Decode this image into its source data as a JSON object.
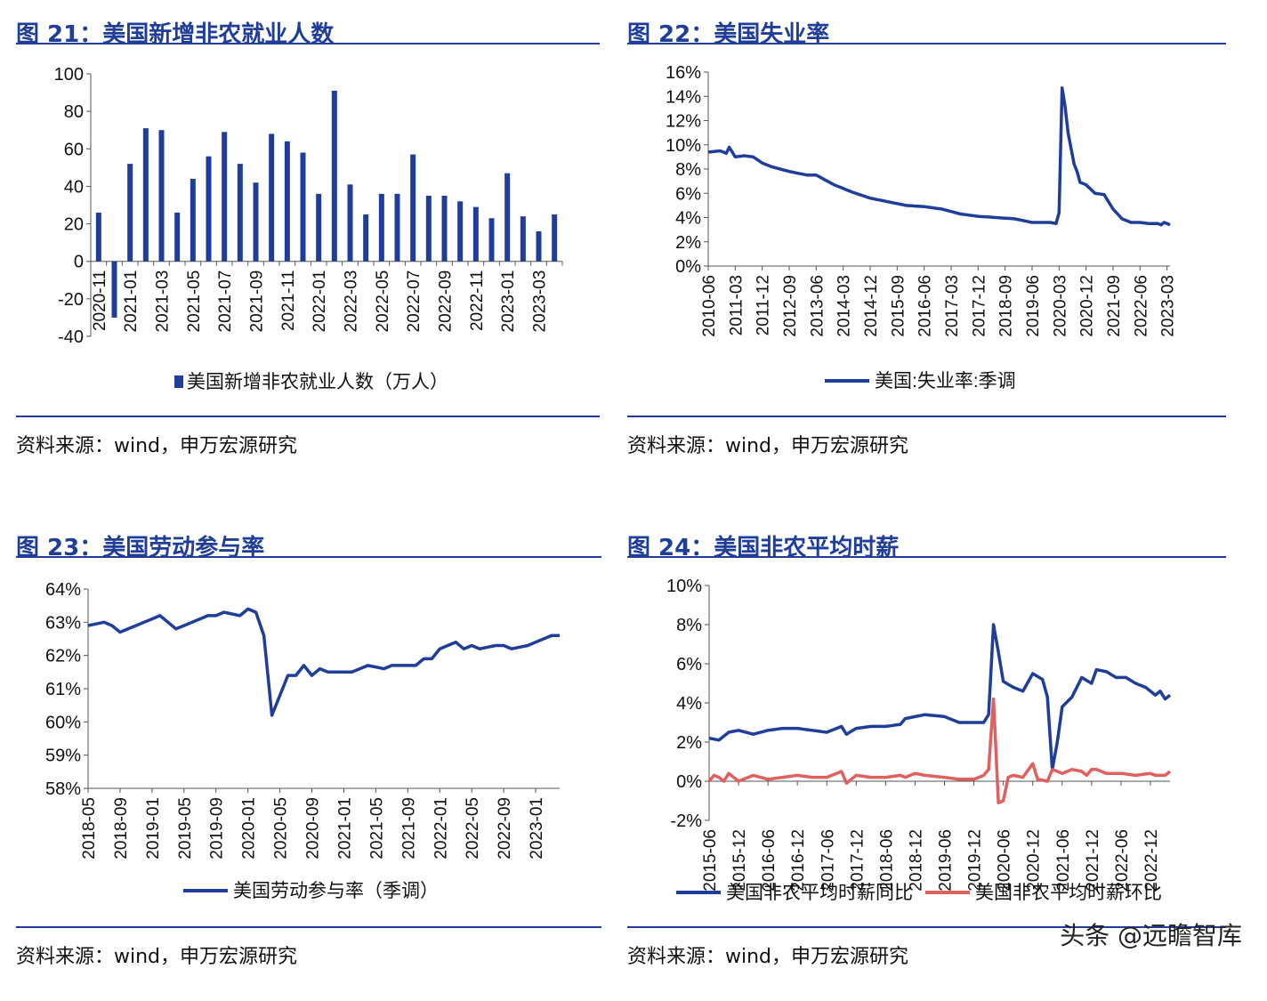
{
  "panels": [
    {
      "title": "图 21：美国新增非农就业人数",
      "source": "资料来源：wind，申万宏源研究",
      "chart": {
        "type": "bar",
        "categories": [
          "2020-11",
          "2020-12",
          "2021-01",
          "2021-02",
          "2021-03",
          "2021-04",
          "2021-05",
          "2021-06",
          "2021-07",
          "2021-08",
          "2021-09",
          "2021-10",
          "2021-11",
          "2021-12",
          "2022-01",
          "2022-02",
          "2022-03",
          "2022-04",
          "2022-05",
          "2022-06",
          "2022-07",
          "2022-08",
          "2022-09",
          "2022-10",
          "2022-11",
          "2022-12",
          "2023-01",
          "2023-02",
          "2023-03",
          "2023-04"
        ],
        "tick_labels": [
          "2020-11",
          "2021-01",
          "2021-03",
          "2021-05",
          "2021-07",
          "2021-09",
          "2021-11",
          "2022-01",
          "2022-03",
          "2022-05",
          "2022-07",
          "2022-09",
          "2022-11",
          "2023-01",
          "2023-03"
        ],
        "values": [
          26,
          -30,
          52,
          71,
          70,
          26,
          44,
          56,
          69,
          52,
          42,
          68,
          64,
          58,
          36,
          91,
          41,
          25,
          36,
          36,
          57,
          35,
          35,
          32,
          29,
          23,
          47,
          24,
          16,
          25
        ],
        "series_name": "美国新增非农就业人数（万人）",
        "y_ticks": [
          "100",
          "80",
          "60",
          "40",
          "20",
          "0",
          "-20",
          "-40"
        ],
        "ylim": [
          -40,
          100
        ],
        "color": "#1f3d99",
        "legend_position": "bottom"
      }
    },
    {
      "title": "图 22：美国失业率",
      "source": "资料来源：wind，申万宏源研究",
      "chart": {
        "type": "line",
        "x_start": "2010-06",
        "tick_labels": [
          "2010-06",
          "2011-03",
          "2011-12",
          "2012-09",
          "2013-06",
          "2014-03",
          "2014-12",
          "2015-09",
          "2016-06",
          "2017-03",
          "2017-12",
          "2018-09",
          "2019-06",
          "2020-03",
          "2020-12",
          "2021-09",
          "2022-06",
          "2023-03"
        ],
        "x_end": "2023-04",
        "keypoints": [
          [
            "2010-06",
            9.4
          ],
          [
            "2010-10",
            9.5
          ],
          [
            "2010-12",
            9.3
          ],
          [
            "2011-01",
            9.8
          ],
          [
            "2011-03",
            9.0
          ],
          [
            "2011-06",
            9.1
          ],
          [
            "2011-09",
            9.0
          ],
          [
            "2011-12",
            8.5
          ],
          [
            "2012-03",
            8.2
          ],
          [
            "2012-09",
            7.8
          ],
          [
            "2013-03",
            7.5
          ],
          [
            "2013-06",
            7.5
          ],
          [
            "2013-12",
            6.7
          ],
          [
            "2014-06",
            6.1
          ],
          [
            "2014-12",
            5.6
          ],
          [
            "2015-06",
            5.3
          ],
          [
            "2015-12",
            5.0
          ],
          [
            "2016-06",
            4.9
          ],
          [
            "2016-12",
            4.7
          ],
          [
            "2017-06",
            4.3
          ],
          [
            "2017-12",
            4.1
          ],
          [
            "2018-06",
            4.0
          ],
          [
            "2018-12",
            3.9
          ],
          [
            "2019-06",
            3.6
          ],
          [
            "2019-12",
            3.6
          ],
          [
            "2020-02",
            3.5
          ],
          [
            "2020-03",
            4.4
          ],
          [
            "2020-04",
            14.7
          ],
          [
            "2020-05",
            13.2
          ],
          [
            "2020-06",
            11.0
          ],
          [
            "2020-08",
            8.4
          ],
          [
            "2020-09",
            7.8
          ],
          [
            "2020-10",
            6.9
          ],
          [
            "2020-12",
            6.7
          ],
          [
            "2021-03",
            6.0
          ],
          [
            "2021-06",
            5.9
          ],
          [
            "2021-09",
            4.7
          ],
          [
            "2021-12",
            3.9
          ],
          [
            "2022-03",
            3.6
          ],
          [
            "2022-06",
            3.6
          ],
          [
            "2022-09",
            3.5
          ],
          [
            "2022-12",
            3.5
          ],
          [
            "2023-01",
            3.4
          ],
          [
            "2023-02",
            3.6
          ],
          [
            "2023-03",
            3.5
          ],
          [
            "2023-04",
            3.4
          ]
        ],
        "series_name": "美国:失业率:季调",
        "y_ticks": [
          "16%",
          "14%",
          "12%",
          "10%",
          "8%",
          "6%",
          "4%",
          "2%",
          "0%"
        ],
        "ylim": [
          0,
          16
        ],
        "color": "#1f3d99",
        "legend_position": "bottom"
      }
    },
    {
      "title": "图 23：美国劳动参与率",
      "source": "资料来源：wind，申万宏源研究",
      "chart": {
        "type": "line",
        "x_start": "2018-05",
        "tick_labels": [
          "2018-05",
          "2018-09",
          "2019-01",
          "2019-05",
          "2019-09",
          "2020-01",
          "2020-05",
          "2020-09",
          "2021-01",
          "2021-05",
          "2021-09",
          "2022-01",
          "2022-05",
          "2022-09",
          "2023-01"
        ],
        "x_end": "2023-04",
        "keypoints": [
          [
            "2018-05",
            62.9
          ],
          [
            "2018-07",
            63.0
          ],
          [
            "2018-08",
            62.9
          ],
          [
            "2018-09",
            62.7
          ],
          [
            "2018-11",
            62.9
          ],
          [
            "2018-12",
            63.0
          ],
          [
            "2019-02",
            63.2
          ],
          [
            "2019-04",
            62.8
          ],
          [
            "2019-06",
            63.0
          ],
          [
            "2019-08",
            63.2
          ],
          [
            "2019-09",
            63.2
          ],
          [
            "2019-10",
            63.3
          ],
          [
            "2019-12",
            63.2
          ],
          [
            "2020-01",
            63.4
          ],
          [
            "2020-02",
            63.3
          ],
          [
            "2020-03",
            62.6
          ],
          [
            "2020-04",
            60.2
          ],
          [
            "2020-05",
            60.8
          ],
          [
            "2020-06",
            61.4
          ],
          [
            "2020-07",
            61.4
          ],
          [
            "2020-08",
            61.7
          ],
          [
            "2020-09",
            61.4
          ],
          [
            "2020-10",
            61.6
          ],
          [
            "2020-11",
            61.5
          ],
          [
            "2020-12",
            61.5
          ],
          [
            "2021-02",
            61.5
          ],
          [
            "2021-04",
            61.7
          ],
          [
            "2021-06",
            61.6
          ],
          [
            "2021-07",
            61.7
          ],
          [
            "2021-10",
            61.7
          ],
          [
            "2021-11",
            61.9
          ],
          [
            "2021-12",
            61.9
          ],
          [
            "2022-01",
            62.2
          ],
          [
            "2022-02",
            62.3
          ],
          [
            "2022-03",
            62.4
          ],
          [
            "2022-04",
            62.2
          ],
          [
            "2022-05",
            62.3
          ],
          [
            "2022-06",
            62.2
          ],
          [
            "2022-08",
            62.3
          ],
          [
            "2022-09",
            62.3
          ],
          [
            "2022-10",
            62.2
          ],
          [
            "2022-12",
            62.3
          ],
          [
            "2023-01",
            62.4
          ],
          [
            "2023-02",
            62.5
          ],
          [
            "2023-03",
            62.6
          ],
          [
            "2023-04",
            62.6
          ]
        ],
        "series_name": "美国劳动参与率（季调）",
        "y_ticks": [
          "64%",
          "63%",
          "62%",
          "61%",
          "60%",
          "59%",
          "58%"
        ],
        "ylim": [
          58,
          64
        ],
        "color": "#1f3d99",
        "legend_position": "bottom"
      }
    },
    {
      "title": "图 24：美国非农平均时薪",
      "source": "资料来源：wind，申万宏源研究",
      "chart": {
        "type": "line",
        "x_start": "2015-06",
        "tick_labels": [
          "2015-06",
          "2015-12",
          "2016-06",
          "2016-12",
          "2017-06",
          "2017-12",
          "2018-06",
          "2018-12",
          "2019-06",
          "2019-12",
          "2020-06",
          "2020-12",
          "2021-06",
          "2021-12",
          "2022-06",
          "2022-12"
        ],
        "x_end": "2023-04",
        "y_ticks": [
          "10%",
          "8%",
          "6%",
          "4%",
          "2%",
          "0%",
          "-2%"
        ],
        "ylim": [
          -2,
          10
        ],
        "legend_position": "bottom",
        "series": [
          {
            "name": "美国非农平均时薪同比",
            "color": "#1f3d99",
            "keypoints": [
              [
                "2015-06",
                2.2
              ],
              [
                "2015-08",
                2.1
              ],
              [
                "2015-10",
                2.5
              ],
              [
                "2015-12",
                2.6
              ],
              [
                "2016-03",
                2.4
              ],
              [
                "2016-06",
                2.6
              ],
              [
                "2016-09",
                2.7
              ],
              [
                "2016-12",
                2.7
              ],
              [
                "2017-03",
                2.6
              ],
              [
                "2017-06",
                2.5
              ],
              [
                "2017-09",
                2.8
              ],
              [
                "2017-10",
                2.4
              ],
              [
                "2017-12",
                2.7
              ],
              [
                "2018-03",
                2.8
              ],
              [
                "2018-06",
                2.8
              ],
              [
                "2018-09",
                2.9
              ],
              [
                "2018-10",
                3.2
              ],
              [
                "2018-12",
                3.3
              ],
              [
                "2019-02",
                3.4
              ],
              [
                "2019-06",
                3.3
              ],
              [
                "2019-09",
                3.0
              ],
              [
                "2019-12",
                3.0
              ],
              [
                "2020-02",
                3.0
              ],
              [
                "2020-03",
                3.4
              ],
              [
                "2020-04",
                8.0
              ],
              [
                "2020-05",
                6.6
              ],
              [
                "2020-06",
                5.1
              ],
              [
                "2020-08",
                4.8
              ],
              [
                "2020-10",
                4.6
              ],
              [
                "2020-12",
                5.5
              ],
              [
                "2021-02",
                5.2
              ],
              [
                "2021-03",
                4.3
              ],
              [
                "2021-04",
                0.6
              ],
              [
                "2021-05",
                2.0
              ],
              [
                "2021-06",
                3.8
              ],
              [
                "2021-08",
                4.3
              ],
              [
                "2021-10",
                5.3
              ],
              [
                "2021-12",
                5.0
              ],
              [
                "2022-01",
                5.7
              ],
              [
                "2022-03",
                5.6
              ],
              [
                "2022-05",
                5.3
              ],
              [
                "2022-07",
                5.3
              ],
              [
                "2022-09",
                5.0
              ],
              [
                "2022-11",
                4.8
              ],
              [
                "2022-12",
                4.6
              ],
              [
                "2023-01",
                4.4
              ],
              [
                "2023-02",
                4.6
              ],
              [
                "2023-03",
                4.2
              ],
              [
                "2023-04",
                4.4
              ]
            ]
          },
          {
            "name": "美国非农平均时薪环比",
            "color": "#e06060",
            "keypoints": [
              [
                "2015-06",
                0.0
              ],
              [
                "2015-07",
                0.3
              ],
              [
                "2015-08",
                0.2
              ],
              [
                "2015-09",
                0.0
              ],
              [
                "2015-10",
                0.4
              ],
              [
                "2015-11",
                0.2
              ],
              [
                "2015-12",
                0.0
              ],
              [
                "2016-03",
                0.3
              ],
              [
                "2016-06",
                0.1
              ],
              [
                "2016-09",
                0.2
              ],
              [
                "2016-12",
                0.3
              ],
              [
                "2017-03",
                0.2
              ],
              [
                "2017-06",
                0.2
              ],
              [
                "2017-09",
                0.5
              ],
              [
                "2017-10",
                -0.1
              ],
              [
                "2017-12",
                0.3
              ],
              [
                "2018-03",
                0.2
              ],
              [
                "2018-06",
                0.2
              ],
              [
                "2018-09",
                0.3
              ],
              [
                "2018-10",
                0.2
              ],
              [
                "2018-12",
                0.4
              ],
              [
                "2019-02",
                0.3
              ],
              [
                "2019-06",
                0.2
              ],
              [
                "2019-09",
                0.1
              ],
              [
                "2019-12",
                0.1
              ],
              [
                "2020-02",
                0.3
              ],
              [
                "2020-03",
                0.6
              ],
              [
                "2020-04",
                4.2
              ],
              [
                "2020-05",
                -1.1
              ],
              [
                "2020-06",
                -1.0
              ],
              [
                "2020-07",
                0.2
              ],
              [
                "2020-08",
                0.3
              ],
              [
                "2020-10",
                0.2
              ],
              [
                "2020-12",
                0.9
              ],
              [
                "2021-01",
                0.1
              ],
              [
                "2021-03",
                0.0
              ],
              [
                "2021-04",
                0.6
              ],
              [
                "2021-06",
                0.4
              ],
              [
                "2021-08",
                0.6
              ],
              [
                "2021-10",
                0.5
              ],
              [
                "2021-11",
                0.3
              ],
              [
                "2021-12",
                0.6
              ],
              [
                "2022-01",
                0.6
              ],
              [
                "2022-03",
                0.4
              ],
              [
                "2022-06",
                0.4
              ],
              [
                "2022-09",
                0.3
              ],
              [
                "2022-12",
                0.4
              ],
              [
                "2023-01",
                0.3
              ],
              [
                "2023-03",
                0.3
              ],
              [
                "2023-04",
                0.5
              ]
            ]
          }
        ]
      }
    }
  ],
  "watermark": "头条 @远瞻智库"
}
